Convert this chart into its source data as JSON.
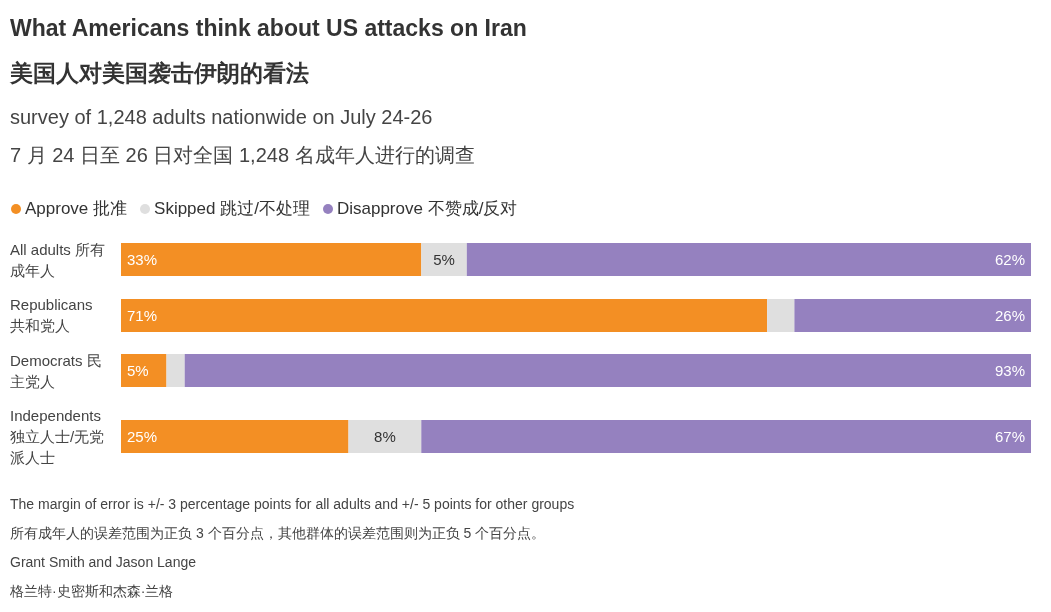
{
  "chart_data": {
    "type": "bar",
    "orientation": "horizontal",
    "stacked": true,
    "title": "What Americans think about US attacks on Iran\n美国人对美国袭击伊朗的看法",
    "subtitle": "survey of 1,248 adults nationwide on July 24-26\n7 月 24 日至 26 日对全国 1,248 名成年人进行的调查",
    "categories": [
      "All adults 所有成年人",
      "Republicans 共和党人",
      "Democrats 民主党人",
      "Independents 独立人士/无党派人士"
    ],
    "series": [
      {
        "name": "Approve 批准",
        "color": "#f38f24",
        "values": [
          33,
          71,
          5,
          25
        ],
        "value_labels": [
          "33%",
          "71%",
          "5%",
          "25%"
        ]
      },
      {
        "name": "Skipped 跳过/不处理",
        "color": "#dfdfdf",
        "values": [
          5,
          3,
          2,
          8
        ],
        "value_labels": [
          "5%",
          null,
          null,
          "8%"
        ]
      },
      {
        "name": "Disapprove 不赞成/反对",
        "color": "#9581bf",
        "values": [
          62,
          26,
          93,
          67
        ],
        "value_labels": [
          "62%",
          "26%",
          "93%",
          "67%"
        ]
      }
    ],
    "xlim": [
      0,
      100
    ],
    "legend": "top left",
    "annotations": [
      "The margin of error is +/- 3 percentage points for all adults and +/- 5 points for other groups",
      "所有成年人的误差范围为正负 3 个百分点，其他群体的误差范围则为正负 5 个百分点。",
      "Grant Smith and Jason Lange",
      "格兰特·史密斯和杰森·兰格"
    ]
  }
}
